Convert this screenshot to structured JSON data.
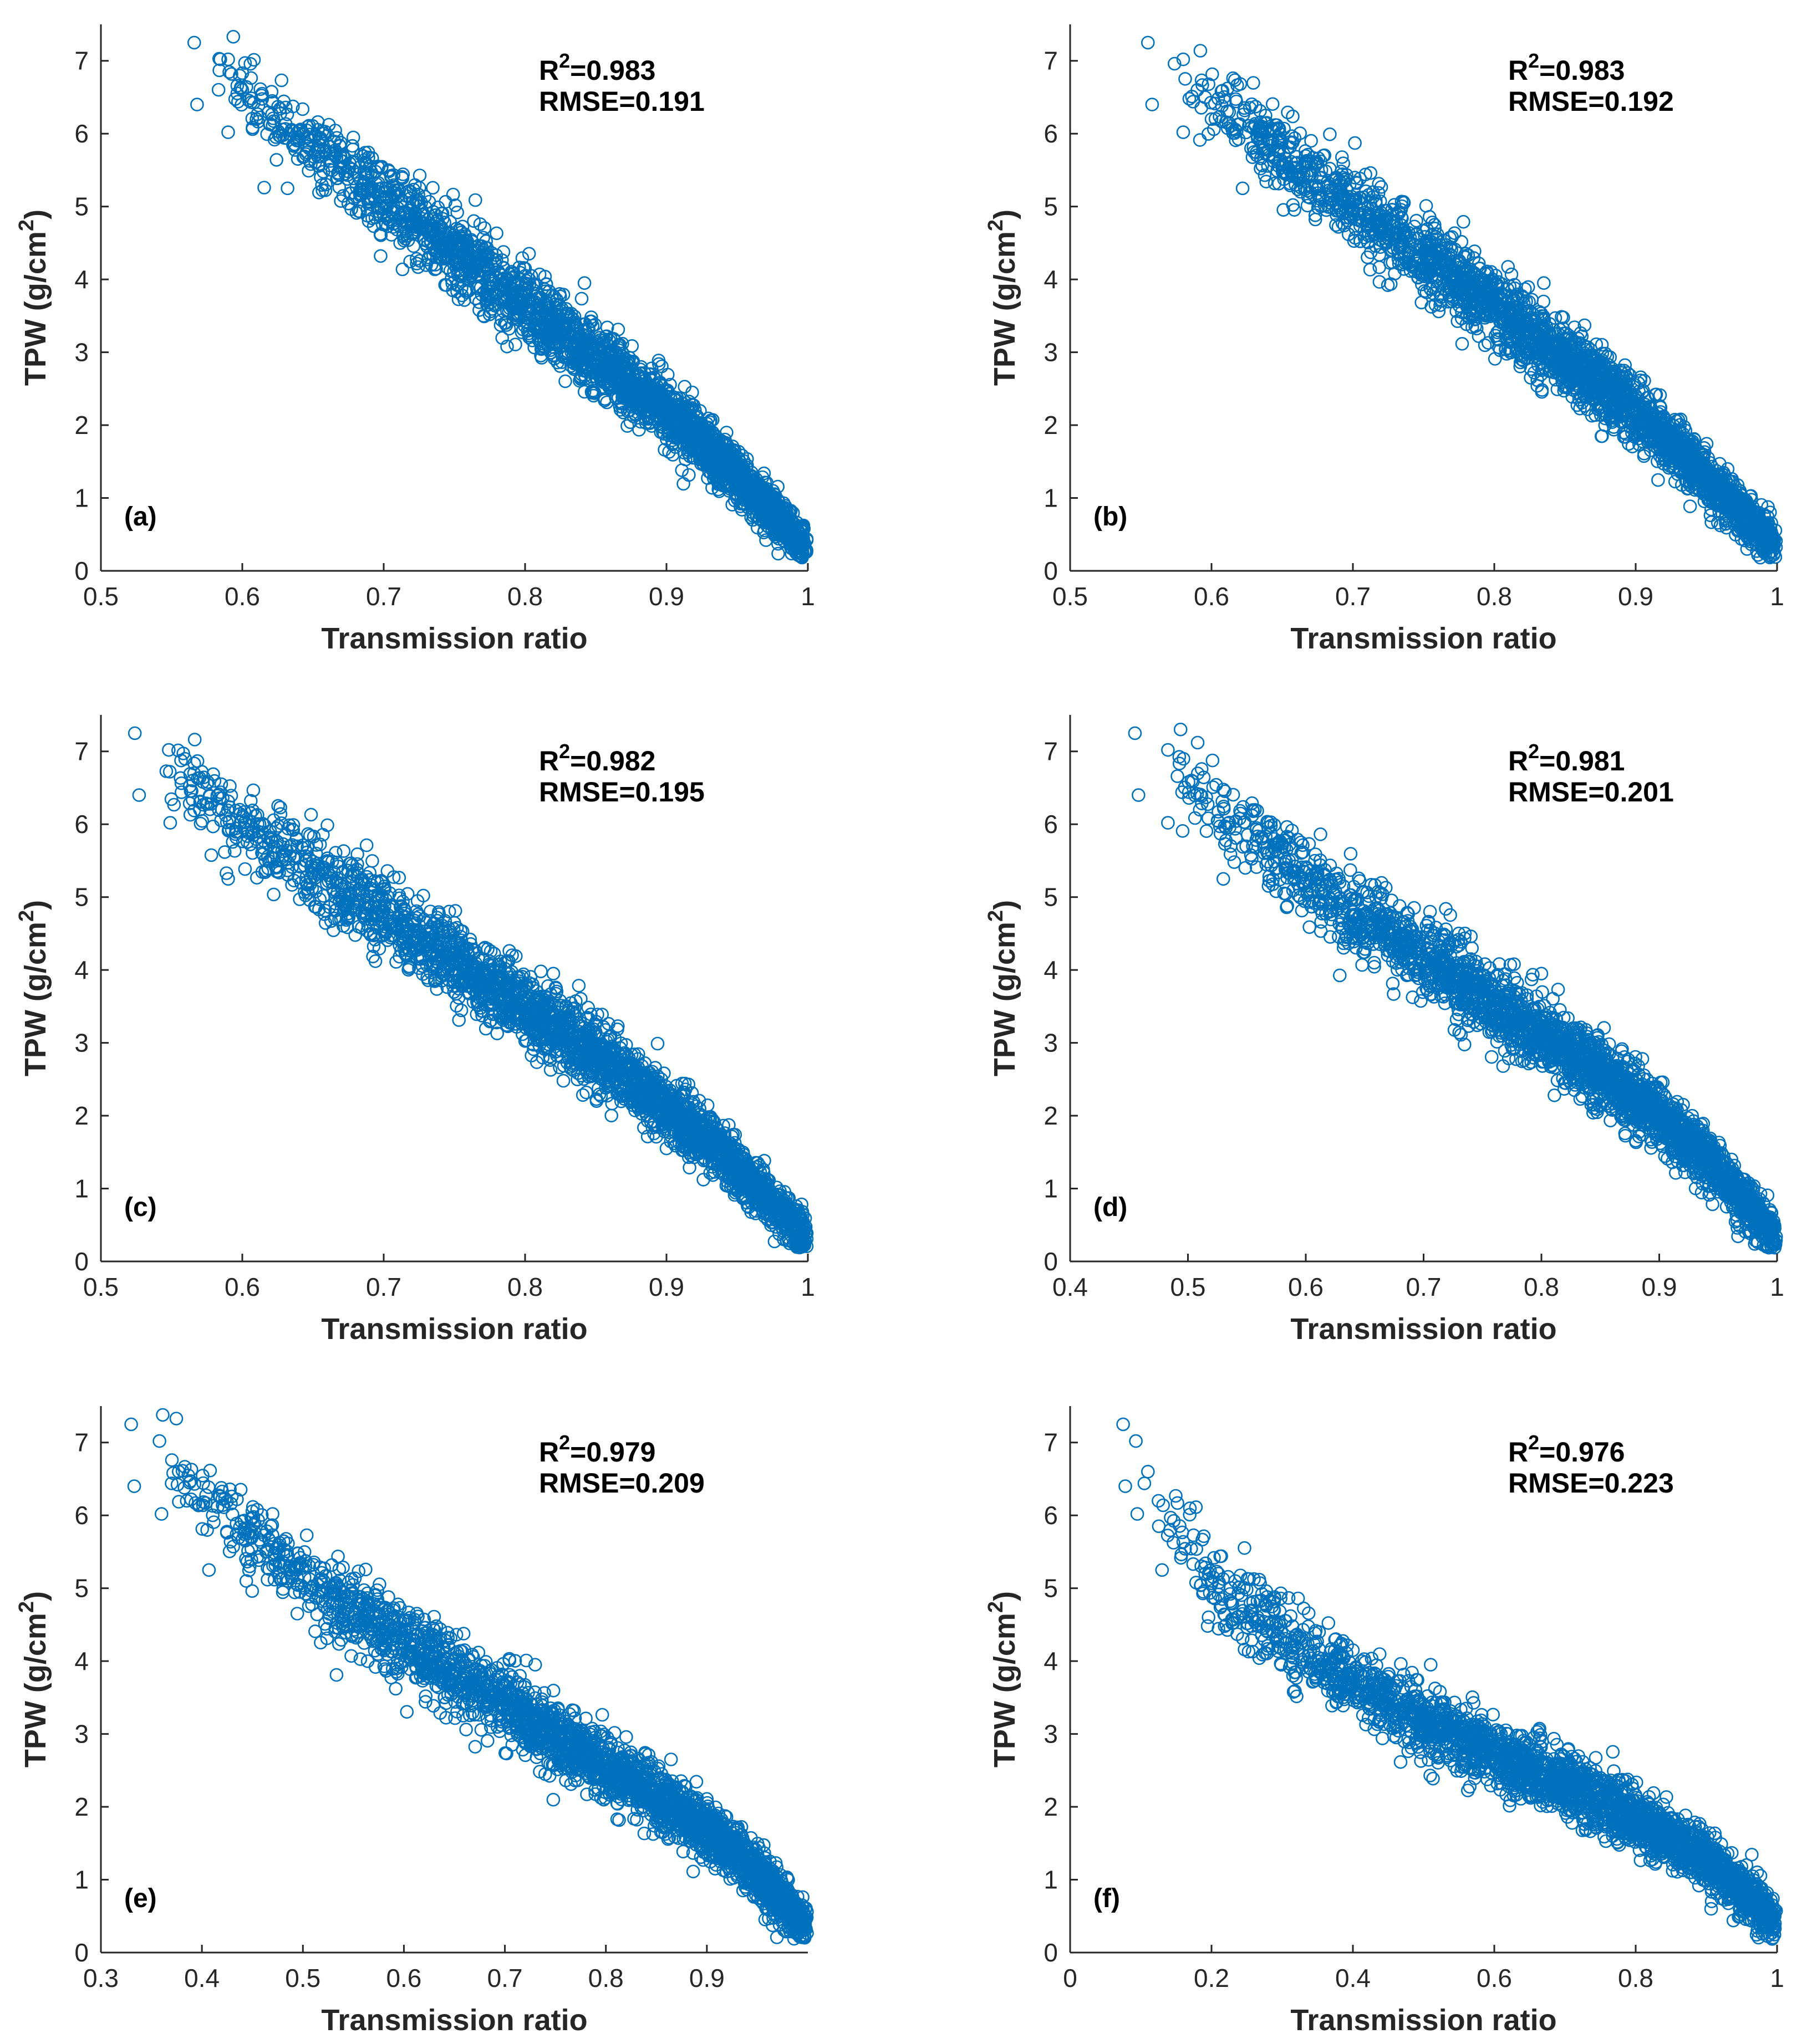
{
  "figure": {
    "marker_color": "#0072BD",
    "axis_color": "#262626"
  },
  "chart_data": [
    {
      "type": "scatter",
      "panel_label": "(a)",
      "xlabel": "Transmission ratio",
      "ylabel": "TPW (g/cm",
      "ylabel_sup": "2",
      "ylabel_close": ")",
      "xlim": [
        0.5,
        1.0
      ],
      "ylim": [
        0,
        7.5
      ],
      "xticks": [
        "0.5",
        "0.6",
        "0.7",
        "0.8",
        "0.9",
        "1"
      ],
      "yticks": [
        "0",
        "1",
        "2",
        "3",
        "4",
        "5",
        "6",
        "7"
      ],
      "r2_prefix": "R",
      "r2_sup": "2",
      "r2_value": "=0.983",
      "rmse": "RMSE=0.191",
      "trend": [
        [
          0.565,
          7.2
        ],
        [
          0.64,
          6.0
        ],
        [
          0.7,
          5.1
        ],
        [
          0.75,
          4.4
        ],
        [
          0.8,
          3.6
        ],
        [
          0.85,
          2.9
        ],
        [
          0.9,
          2.2
        ],
        [
          0.95,
          1.3
        ],
        [
          1.0,
          0.3
        ]
      ],
      "outliers": [
        [
          0.566,
          7.25
        ],
        [
          0.59,
          7.02
        ],
        [
          0.568,
          6.4
        ],
        [
          0.59,
          6.02
        ],
        [
          0.6,
          6.6
        ],
        [
          0.597,
          6.44
        ],
        [
          0.61,
          6.2
        ],
        [
          0.632,
          5.25
        ],
        [
          0.842,
          3.95
        ],
        [
          0.8,
          4.15
        ]
      ]
    },
    {
      "type": "scatter",
      "panel_label": "(b)",
      "xlabel": "Transmission ratio",
      "ylabel": "TPW (g/cm",
      "ylabel_sup": "2",
      "ylabel_close": ")",
      "xlim": [
        0.5,
        1.0
      ],
      "ylim": [
        0,
        7.5
      ],
      "xticks": [
        "0.5",
        "0.6",
        "0.7",
        "0.8",
        "0.9",
        "1"
      ],
      "yticks": [
        "0",
        "1",
        "2",
        "3",
        "4",
        "5",
        "6",
        "7"
      ],
      "r2_prefix": "R",
      "r2_sup": "2",
      "r2_value": "=0.983",
      "rmse": "RMSE=0.192",
      "trend": [
        [
          0.555,
          7.2
        ],
        [
          0.63,
          6.0
        ],
        [
          0.69,
          5.1
        ],
        [
          0.745,
          4.4
        ],
        [
          0.8,
          3.6
        ],
        [
          0.85,
          2.9
        ],
        [
          0.9,
          2.2
        ],
        [
          0.95,
          1.3
        ],
        [
          1.0,
          0.3
        ]
      ],
      "outliers": [
        [
          0.555,
          7.25
        ],
        [
          0.58,
          7.02
        ],
        [
          0.558,
          6.4
        ],
        [
          0.58,
          6.02
        ],
        [
          0.59,
          6.6
        ],
        [
          0.587,
          6.44
        ],
        [
          0.6,
          6.2
        ],
        [
          0.622,
          5.25
        ],
        [
          0.835,
          3.95
        ],
        [
          0.79,
          4.15
        ]
      ]
    },
    {
      "type": "scatter",
      "panel_label": "(c)",
      "xlabel": "Transmission ratio",
      "ylabel": "TPW (g/cm",
      "ylabel_sup": "2",
      "ylabel_close": ")",
      "xlim": [
        0.5,
        1.0
      ],
      "ylim": [
        0,
        7.5
      ],
      "xticks": [
        "0.5",
        "0.6",
        "0.7",
        "0.8",
        "0.9",
        "1"
      ],
      "yticks": [
        "0",
        "1",
        "2",
        "3",
        "4",
        "5",
        "6",
        "7"
      ],
      "r2_prefix": "R",
      "r2_sup": "2",
      "r2_value": "=0.982",
      "rmse": "RMSE=0.195",
      "trend": [
        [
          0.52,
          7.2
        ],
        [
          0.6,
          6.0
        ],
        [
          0.67,
          5.1
        ],
        [
          0.73,
          4.4
        ],
        [
          0.79,
          3.6
        ],
        [
          0.845,
          2.9
        ],
        [
          0.9,
          2.1
        ],
        [
          0.95,
          1.3
        ],
        [
          1.0,
          0.3
        ]
      ],
      "outliers": [
        [
          0.524,
          7.25
        ],
        [
          0.548,
          7.02
        ],
        [
          0.527,
          6.4
        ],
        [
          0.549,
          6.02
        ],
        [
          0.565,
          6.6
        ],
        [
          0.557,
          6.44
        ],
        [
          0.57,
          6.2
        ],
        [
          0.59,
          5.25
        ],
        [
          0.82,
          3.95
        ],
        [
          0.77,
          4.15
        ]
      ]
    },
    {
      "type": "scatter",
      "panel_label": "(d)",
      "xlabel": "Transmission ratio",
      "ylabel": "TPW (g/cm",
      "ylabel_sup": "2",
      "ylabel_close": ")",
      "xlim": [
        0.4,
        1.0
      ],
      "ylim": [
        0,
        7.5
      ],
      "xticks": [
        "0.4",
        "0.5",
        "0.6",
        "0.7",
        "0.8",
        "0.9",
        "1"
      ],
      "yticks": [
        "0",
        "1",
        "2",
        "3",
        "4",
        "5",
        "6",
        "7"
      ],
      "r2_prefix": "R",
      "r2_sup": "2",
      "r2_value": "=0.981",
      "rmse": "RMSE=0.201",
      "trend": [
        [
          0.455,
          7.2
        ],
        [
          0.54,
          6.0
        ],
        [
          0.62,
          5.0
        ],
        [
          0.69,
          4.3
        ],
        [
          0.76,
          3.5
        ],
        [
          0.83,
          2.8
        ],
        [
          0.9,
          2.0
        ],
        [
          0.95,
          1.25
        ],
        [
          1.0,
          0.3
        ]
      ],
      "outliers": [
        [
          0.455,
          7.25
        ],
        [
          0.483,
          7.02
        ],
        [
          0.458,
          6.4
        ],
        [
          0.483,
          6.02
        ],
        [
          0.503,
          6.6
        ],
        [
          0.495,
          6.44
        ],
        [
          0.51,
          6.2
        ],
        [
          0.53,
          5.25
        ],
        [
          0.8,
          3.95
        ],
        [
          0.74,
          4.15
        ]
      ]
    },
    {
      "type": "scatter",
      "panel_label": "(e)",
      "xlabel": "Transmission ratio",
      "ylabel": "TPW (g/cm",
      "ylabel_sup": "2",
      "ylabel_close": ")",
      "xlim": [
        0.3,
        1.0
      ],
      "ylim": [
        0,
        7.5
      ],
      "xticks": [
        "0.3",
        "0.4",
        "0.5",
        "0.6",
        "0.7",
        "0.8",
        "0.9"
      ],
      "yticks": [
        "0",
        "1",
        "2",
        "3",
        "4",
        "5",
        "6",
        "7"
      ],
      "r2_prefix": "R",
      "r2_sup": "2",
      "r2_value": "=0.979",
      "rmse": "RMSE=0.209",
      "trend": [
        [
          0.33,
          7.2
        ],
        [
          0.42,
          6.0
        ],
        [
          0.52,
          4.9
        ],
        [
          0.62,
          4.1
        ],
        [
          0.72,
          3.2
        ],
        [
          0.82,
          2.4
        ],
        [
          0.9,
          1.7
        ],
        [
          0.95,
          1.1
        ],
        [
          1.0,
          0.3
        ]
      ],
      "outliers": [
        [
          0.33,
          7.25
        ],
        [
          0.358,
          7.02
        ],
        [
          0.333,
          6.4
        ],
        [
          0.36,
          6.02
        ],
        [
          0.377,
          6.6
        ],
        [
          0.37,
          6.44
        ],
        [
          0.385,
          6.2
        ],
        [
          0.407,
          5.25
        ],
        [
          0.73,
          3.95
        ],
        [
          0.66,
          4.15
        ]
      ]
    },
    {
      "type": "scatter",
      "panel_label": "(f)",
      "xlabel": "Transmission ratio",
      "ylabel": "TPW (g/cm",
      "ylabel_sup": "2",
      "ylabel_close": ")",
      "xlim": [
        0.0,
        1.0
      ],
      "ylim": [
        0,
        7.5
      ],
      "xticks": [
        "0",
        "0.2",
        "0.4",
        "0.6",
        "0.8",
        "1"
      ],
      "yticks": [
        "0",
        "1",
        "2",
        "3",
        "4",
        "5",
        "6",
        "7"
      ],
      "r2_prefix": "R",
      "r2_sup": "2",
      "r2_value": "=0.976",
      "rmse": "RMSE=0.223",
      "trend": [
        [
          0.075,
          7.2
        ],
        [
          0.12,
          6.2
        ],
        [
          0.2,
          5.1
        ],
        [
          0.3,
          4.3
        ],
        [
          0.45,
          3.4
        ],
        [
          0.6,
          2.7
        ],
        [
          0.75,
          2.1
        ],
        [
          0.9,
          1.3
        ],
        [
          1.0,
          0.4
        ]
      ],
      "outliers": [
        [
          0.075,
          7.25
        ],
        [
          0.093,
          7.02
        ],
        [
          0.078,
          6.4
        ],
        [
          0.095,
          6.02
        ],
        [
          0.11,
          6.6
        ],
        [
          0.105,
          6.44
        ],
        [
          0.125,
          6.2
        ],
        [
          0.13,
          5.25
        ],
        [
          0.51,
          3.95
        ],
        [
          0.4,
          4.15
        ]
      ]
    }
  ]
}
